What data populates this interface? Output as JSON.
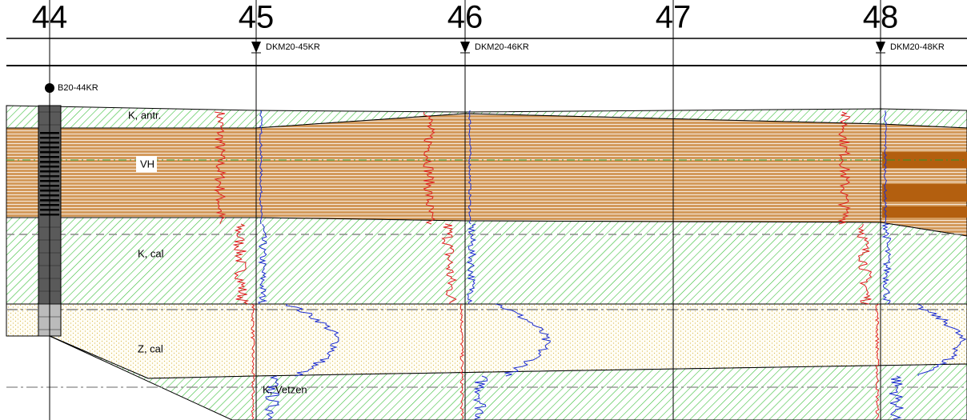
{
  "stations": [
    {
      "label": "44"
    },
    {
      "label": "45"
    },
    {
      "label": "46"
    },
    {
      "label": "47"
    },
    {
      "label": "48"
    }
  ],
  "wells": [
    {
      "name": "DKM20-45KR"
    },
    {
      "name": "DKM20-46KR"
    },
    {
      "name": "DKM20-48KR"
    }
  ],
  "borehole": {
    "name": "B20-44KR"
  },
  "layers": [
    {
      "label": "K, antr."
    },
    {
      "label": "VH"
    },
    {
      "label": "K, cal"
    },
    {
      "label": "Z, cal"
    },
    {
      "label": "K, Vetzen"
    }
  ]
}
